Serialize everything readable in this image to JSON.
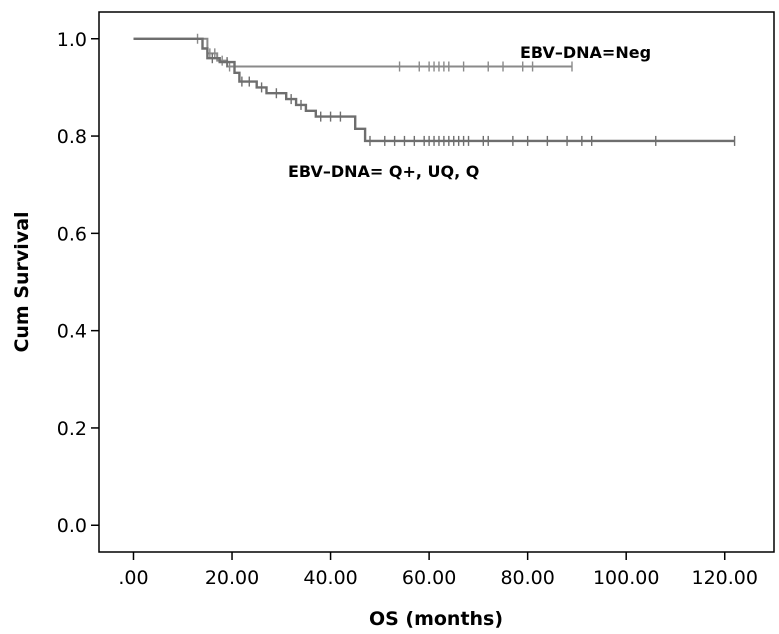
{
  "chart_data": {
    "type": "line",
    "title": "",
    "xlabel": "OS (months)",
    "ylabel": "Cum Survival",
    "xlim": [
      -7,
      130
    ],
    "ylim": [
      -0.055,
      1.055
    ],
    "xticks": [
      0,
      20,
      40,
      60,
      80,
      100,
      120
    ],
    "xtick_labels": [
      ".00",
      "20.00",
      "40.00",
      "60.00",
      "80.00",
      "100.00",
      "120.00"
    ],
    "yticks": [
      0.0,
      0.2,
      0.4,
      0.6,
      0.8,
      1.0
    ],
    "ytick_labels": [
      "0.0",
      "0.2",
      "0.4",
      "0.6",
      "0.8",
      "1.0"
    ],
    "grid": false,
    "series": [
      {
        "name": "EBV-DNA=Neg",
        "color": "#8a8a8a",
        "step_points": [
          [
            0,
            1.0
          ],
          [
            15,
            1.0
          ],
          [
            15,
            0.97
          ],
          [
            17,
            0.97
          ],
          [
            17,
            0.955
          ],
          [
            19,
            0.955
          ],
          [
            19,
            0.943
          ],
          [
            89,
            0.943
          ]
        ],
        "censored_x": [
          13,
          15.5,
          16.5,
          18,
          19.5,
          20.5,
          54,
          58,
          60,
          61,
          62,
          63,
          64,
          67,
          72,
          75,
          79,
          81,
          89
        ]
      },
      {
        "name": "EBV-DNA= Q+, UQ, Q",
        "color": "#6e6e6e",
        "step_points": [
          [
            0,
            1.0
          ],
          [
            14,
            1.0
          ],
          [
            14,
            0.98
          ],
          [
            15,
            0.98
          ],
          [
            15,
            0.96
          ],
          [
            17.5,
            0.96
          ],
          [
            17.5,
            0.952
          ],
          [
            20.5,
            0.952
          ],
          [
            20.5,
            0.93
          ],
          [
            21.5,
            0.93
          ],
          [
            21.5,
            0.912
          ],
          [
            25,
            0.912
          ],
          [
            25,
            0.9
          ],
          [
            27,
            0.9
          ],
          [
            27,
            0.888
          ],
          [
            31,
            0.888
          ],
          [
            31,
            0.876
          ],
          [
            33,
            0.876
          ],
          [
            33,
            0.864
          ],
          [
            35,
            0.864
          ],
          [
            35,
            0.852
          ],
          [
            37,
            0.852
          ],
          [
            37,
            0.84
          ],
          [
            45,
            0.84
          ],
          [
            45,
            0.815
          ],
          [
            47,
            0.815
          ],
          [
            47,
            0.79
          ],
          [
            122,
            0.79
          ]
        ],
        "censored_x": [
          16,
          19,
          22,
          23.5,
          26,
          29,
          32,
          34,
          38,
          40,
          42,
          48,
          51,
          53,
          55,
          57,
          59,
          60,
          61,
          62,
          63,
          64,
          65,
          66,
          67,
          68,
          71,
          72,
          77,
          80,
          84,
          88,
          91,
          93,
          106,
          122
        ]
      }
    ]
  },
  "annotations": {
    "neg_label": "EBV–DNA=Neg",
    "pos_label": "EBV–DNA= Q+, UQ, Q"
  }
}
